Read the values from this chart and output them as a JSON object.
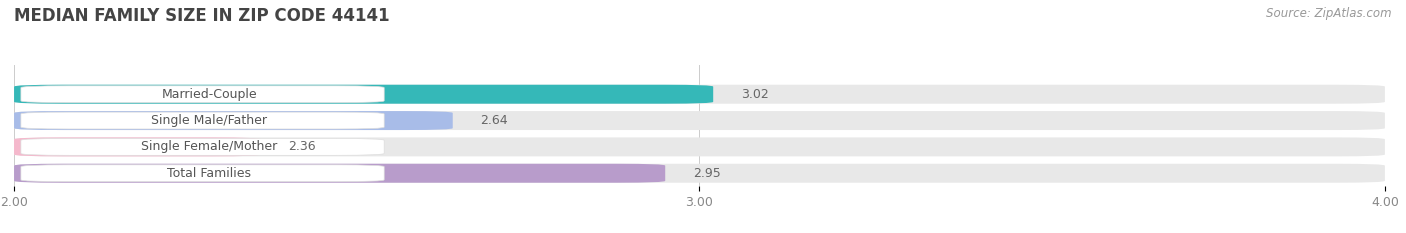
{
  "title": "MEDIAN FAMILY SIZE IN ZIP CODE 44141",
  "source": "Source: ZipAtlas.com",
  "categories": [
    "Married-Couple",
    "Single Male/Father",
    "Single Female/Mother",
    "Total Families"
  ],
  "values": [
    3.02,
    2.64,
    2.36,
    2.95
  ],
  "bar_colors": [
    "#35b8b8",
    "#a8bce8",
    "#f5b8cc",
    "#b89ccb"
  ],
  "bar_bg_color": "#e8e8e8",
  "xlim_min": 2.0,
  "xlim_max": 4.0,
  "xticks": [
    2.0,
    3.0,
    4.0
  ],
  "xtick_labels": [
    "2.00",
    "3.00",
    "4.00"
  ],
  "background_color": "#ffffff",
  "title_fontsize": 12,
  "label_fontsize": 9,
  "value_fontsize": 9,
  "source_fontsize": 8.5
}
